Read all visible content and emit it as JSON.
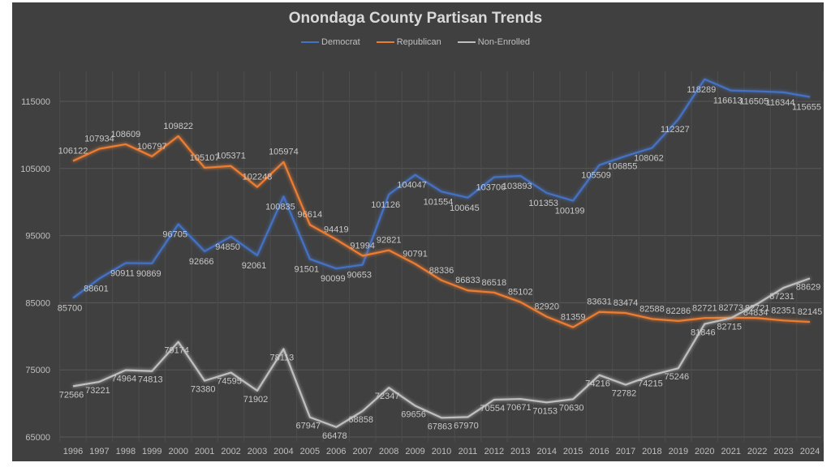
{
  "chart_data": {
    "type": "line",
    "title": "Onondaga County Partisan Trends",
    "xlabel": "",
    "ylabel": "",
    "x": [
      "1996",
      "1997",
      "1998",
      "1999",
      "2000",
      "2001",
      "2002",
      "2003",
      "2004",
      "2005",
      "2006",
      "2007",
      "2008",
      "2009",
      "2010",
      "2011",
      "2012",
      "2013",
      "2014",
      "2015",
      "2016",
      "2017",
      "2018",
      "2019",
      "2020",
      "2021",
      "2022",
      "2023",
      "2024"
    ],
    "ylim": [
      65000,
      120000
    ],
    "yticks": [
      65000,
      75000,
      85000,
      95000,
      105000,
      115000
    ],
    "grid": true,
    "legend_position": "top-center",
    "series": [
      {
        "name": "Democrat",
        "color": "#4472c4",
        "values": [
          85700,
          88601,
          90911,
          90869,
          96705,
          92666,
          94850,
          92061,
          100835,
          91501,
          90099,
          90653,
          101126,
          104047,
          101554,
          100645,
          103706,
          103893,
          101353,
          100199,
          105509,
          106855,
          108062,
          112327,
          118289,
          116613,
          116505,
          116344,
          115655
        ]
      },
      {
        "name": "Republican",
        "color": "#ed7d31",
        "values": [
          106122,
          107934,
          108609,
          106797,
          109822,
          105107,
          105371,
          102248,
          105974,
          96614,
          94419,
          91994,
          92821,
          90791,
          88336,
          86833,
          86518,
          85102,
          82920,
          81359,
          83631,
          83474,
          82588,
          82286,
          82721,
          82773,
          82721,
          82351,
          82145
        ]
      },
      {
        "name": "Non-Enrolled",
        "color": "#bfbfbf",
        "values": [
          72566,
          73221,
          74964,
          74813,
          79174,
          73380,
          74595,
          71902,
          78113,
          67947,
          66478,
          68858,
          72347,
          69656,
          67863,
          67970,
          70554,
          70671,
          70153,
          70630,
          74216,
          72782,
          74215,
          75246,
          81846,
          82715,
          84834,
          87231,
          88629
        ]
      }
    ]
  }
}
